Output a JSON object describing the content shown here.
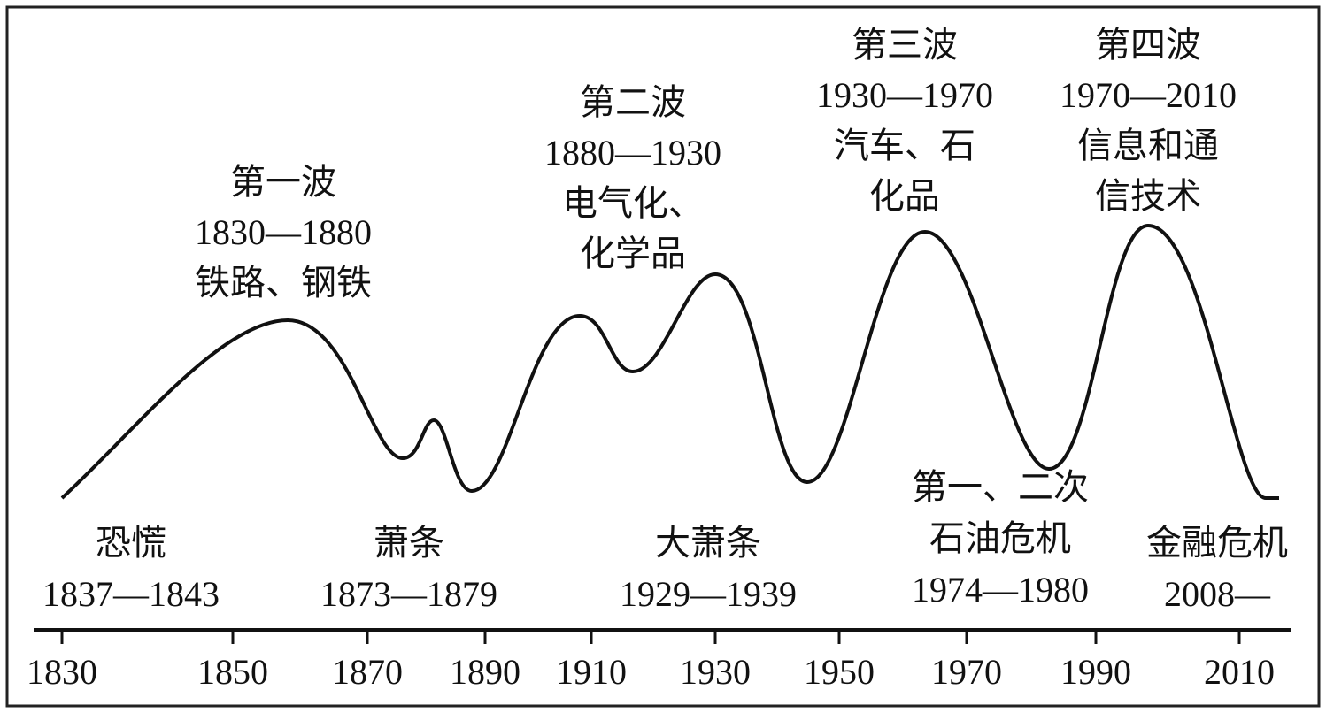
{
  "waves": [
    {
      "lines": [
        "第一波",
        "1830—1880",
        "铁路、钢铁"
      ]
    },
    {
      "lines": [
        "第二波",
        "1880—1930",
        "电气化、",
        "化学品"
      ]
    },
    {
      "lines": [
        "第三波",
        "1930—1970",
        "汽车、石",
        "化品"
      ]
    },
    {
      "lines": [
        "第四波",
        "1970—2010",
        "信息和通",
        "信技术"
      ]
    }
  ],
  "crises": [
    {
      "lines": [
        "恐慌",
        "1837—1843"
      ]
    },
    {
      "lines": [
        "萧条",
        "1873—1879"
      ]
    },
    {
      "lines": [
        "大萧条",
        "1929—1939"
      ]
    },
    {
      "lines": [
        "第一、二次",
        "石油危机",
        "1974—1980"
      ]
    },
    {
      "lines": [
        "金融危机",
        "2008—"
      ]
    }
  ],
  "axis": {
    "ticks": [
      "1830",
      "1850",
      "1870",
      "1890",
      "1910",
      "1930",
      "1950",
      "1970",
      "1990",
      "2010"
    ]
  }
}
